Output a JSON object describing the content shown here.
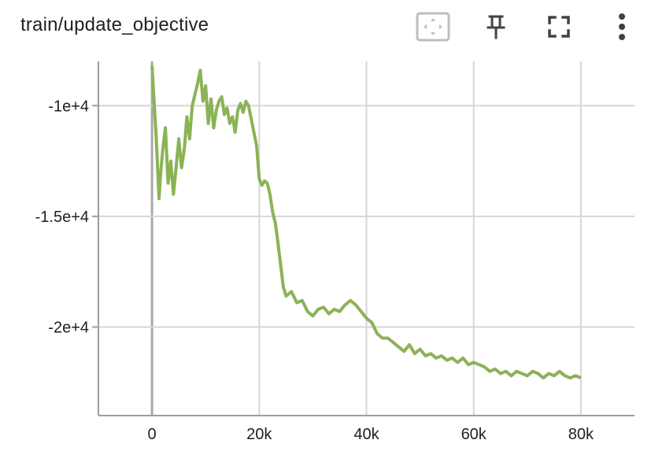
{
  "card": {
    "title": "train/update_objective"
  },
  "toolbar": {
    "icons": [
      "fit-domain-icon",
      "pin-icon",
      "fullscreen-icon",
      "more-vert-icon"
    ]
  },
  "colors": {
    "series": "#8bb356",
    "grid": "#d6d6d6",
    "axis": "#9e9e9e",
    "zero_line": "#a8a8a8",
    "icon": "#424242",
    "icon_light": "#bdbdbd"
  },
  "chart_data": {
    "type": "line",
    "title": "train/update_objective",
    "xlabel": "",
    "ylabel": "",
    "xlim": [
      -10000,
      90000
    ],
    "ylim": [
      -24000,
      -8000
    ],
    "xticks": [
      0,
      20000,
      40000,
      60000,
      80000
    ],
    "xtick_labels": [
      "0",
      "20k",
      "40k",
      "60k",
      "80k"
    ],
    "yticks": [
      -10000,
      -15000,
      -20000
    ],
    "ytick_labels": [
      "-1e+4",
      "-1.5e+4",
      "-2e+4"
    ],
    "grid": true,
    "legend": "none",
    "series": [
      {
        "x": [
          0,
          800,
          1300,
          1600,
          2000,
          2500,
          3000,
          3500,
          4000,
          4500,
          5000,
          5500,
          6000,
          6500,
          7000,
          7500,
          8000,
          8500,
          9000,
          9500,
          10000,
          10500,
          11000,
          11500,
          12000,
          12500,
          13000,
          13500,
          14000,
          14500,
          15000,
          15500,
          16000,
          16500,
          17000,
          17500,
          18000,
          18500,
          19000,
          19500,
          20000,
          20500,
          21000,
          21500,
          22000,
          22500,
          23000,
          23500,
          24000,
          24500,
          25000,
          26000,
          27000,
          28000,
          29000,
          30000,
          31000,
          32000,
          33000,
          34000,
          35000,
          36000,
          37000,
          38000,
          39000,
          40000,
          41000,
          42000,
          43000,
          44000,
          45000,
          46000,
          47000,
          48000,
          49000,
          50000,
          51000,
          52000,
          53000,
          54000,
          55000,
          56000,
          57000,
          58000,
          59000,
          60000,
          61000,
          62000,
          63000,
          64000,
          65000,
          66000,
          67000,
          68000,
          69000,
          70000,
          71000,
          72000,
          73000,
          74000,
          75000,
          76000,
          77000,
          78000,
          79000,
          80000
        ],
        "y": [
          -8200,
          -11500,
          -14200,
          -13100,
          -12000,
          -11000,
          -13500,
          -12500,
          -14000,
          -12800,
          -11500,
          -12800,
          -12000,
          -10500,
          -11500,
          -10000,
          -9500,
          -9000,
          -8400,
          -9800,
          -9100,
          -10800,
          -9700,
          -11000,
          -10200,
          -9800,
          -9600,
          -10400,
          -10100,
          -10800,
          -10500,
          -11200,
          -10200,
          -9900,
          -10300,
          -9800,
          -10000,
          -10600,
          -11200,
          -11800,
          -13300,
          -13600,
          -13400,
          -13500,
          -14000,
          -14800,
          -15300,
          -16200,
          -17200,
          -18200,
          -18600,
          -18400,
          -18900,
          -18800,
          -19300,
          -19500,
          -19200,
          -19100,
          -19400,
          -19200,
          -19300,
          -19000,
          -18800,
          -19000,
          -19300,
          -19600,
          -19800,
          -20300,
          -20500,
          -20500,
          -20700,
          -20900,
          -21100,
          -20800,
          -21200,
          -21000,
          -21300,
          -21200,
          -21400,
          -21300,
          -21500,
          -21400,
          -21600,
          -21400,
          -21700,
          -21600,
          -21700,
          -21800,
          -22000,
          -21900,
          -22100,
          -22000,
          -22200,
          -22000,
          -22100,
          -22200,
          -22000,
          -22100,
          -22300,
          -22100,
          -22200,
          -22000,
          -22200,
          -22300,
          -22200,
          -22300
        ]
      }
    ]
  }
}
